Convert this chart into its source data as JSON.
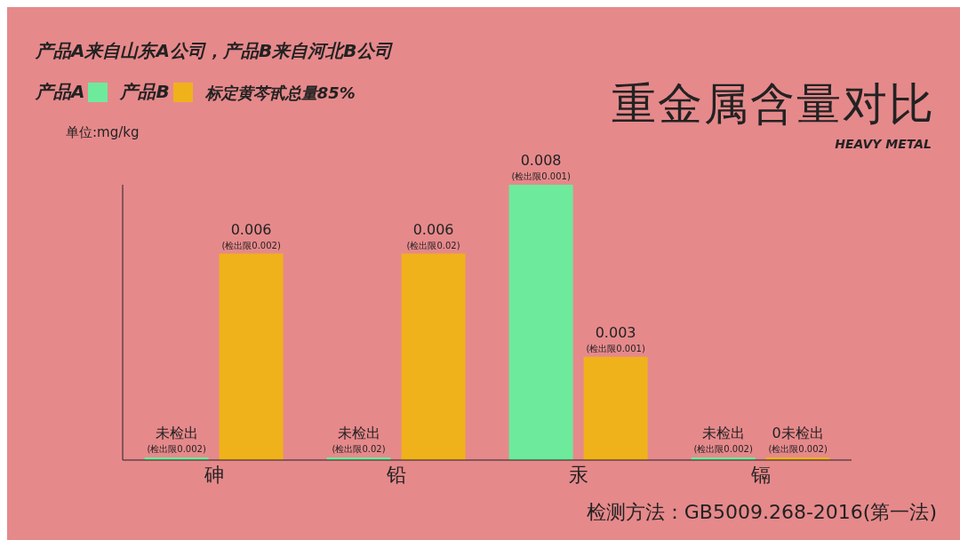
{
  "chart_data": {
    "type": "bar",
    "title": "重金属含量对比",
    "subtitle": "HEAVY METAL",
    "ylabel": "单位:mg/kg",
    "annotations": [
      "产品A来自山东A公司，产品B来自河北B公司",
      "标定黄芩甙总量85%",
      "检测方法：GB5009.268-2016(第一法)"
    ],
    "categories": [
      "砷",
      "铅",
      "汞",
      "镉"
    ],
    "series": [
      {
        "name": "产品A",
        "color": "#6eea9c",
        "values": [
          0,
          0,
          0.008,
          0
        ],
        "value_labels": [
          "未检出\n(检出限0.002)",
          "未检出\n(检出限0.02)",
          "0.008\n(检出限0.001)",
          "未检出\n(检出限0.002)"
        ]
      },
      {
        "name": "产品B",
        "color": "#f0b21b",
        "values": [
          0.006,
          0.006,
          0.003,
          0
        ],
        "value_labels": [
          "0.006\n(检出限0.002)",
          "0.006\n(检出限0.02)",
          "0.003\n(检出限0.001)",
          "0未检出\n(检出限0.002)"
        ]
      }
    ],
    "legend": "top left",
    "grid": false
  }
}
